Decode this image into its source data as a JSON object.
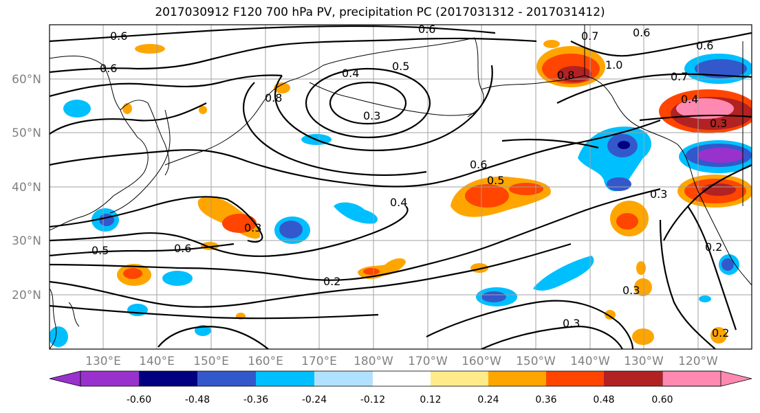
{
  "title": "2017030912 F120 700 hPa PV, precipitation PC (2017031312 - 2017031412)",
  "lon_ticks": [
    "130°E",
    "140°E",
    "150°E",
    "160°E",
    "170°E",
    "180°W",
    "170°W",
    "160°W",
    "150°W",
    "140°W",
    "130°W",
    "120°W"
  ],
  "lat_ticks": [
    "60°N",
    "50°N",
    "40°N",
    "30°N",
    "20°N"
  ],
  "colorbar": {
    "colors": [
      "#9932CC",
      "#000080",
      "#3358CC",
      "#00BFFF",
      "#B0E2FF",
      "#FFFFFF",
      "#FFEB8A",
      "#FFA500",
      "#FF4500",
      "#B22222",
      "#FF89B0"
    ],
    "tick_labels": [
      "-0.60",
      "-0.48",
      "-0.36",
      "-0.24",
      "-0.12",
      "0.12",
      "0.24",
      "0.36",
      "0.48",
      "0.60"
    ]
  },
  "contour_labels": [
    "0.6",
    "0.6",
    "0.6",
    "0.7",
    "0.6",
    "0.6",
    "0.4",
    "0.5",
    "0.3",
    "0.8",
    "0.8",
    "1.0",
    "0.7",
    "0.4",
    "0.3",
    "0.6",
    "0.5",
    "0.4",
    "0.3",
    "0.6",
    "0.5",
    "0.2",
    "0.3",
    "0.3",
    "0.3",
    "0.2",
    "0.2"
  ],
  "fill_colors": {
    "yellow": "#FFEB8A",
    "orange": "#FFA500",
    "red": "#FF4500",
    "darkred": "#B22222",
    "pink": "#FF89B0",
    "lightblue": "#B0E2FF",
    "skyblue": "#00BFFF",
    "blue": "#3358CC",
    "navy": "#000080",
    "purple": "#9932CC"
  }
}
